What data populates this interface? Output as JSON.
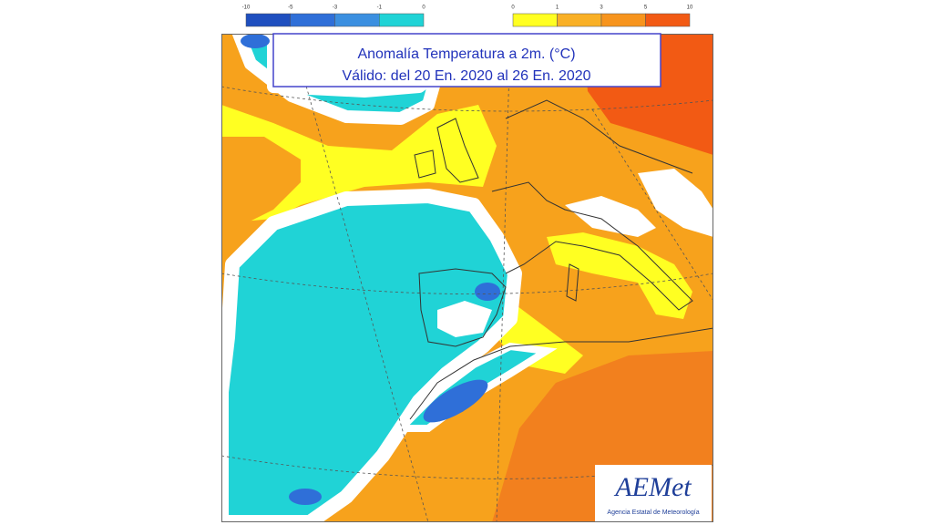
{
  "title": {
    "line1": "Anomalía Temperatura a 2m. (°C)",
    "line2": "Válido: del 20 En. 2020 al 26 En. 2020"
  },
  "legend": {
    "cold": {
      "ticks": [
        -10,
        -5,
        -3,
        -1,
        0
      ],
      "colors": [
        "#1f4fbf",
        "#2f6fd8",
        "#3b8fe0",
        "#20d3d6"
      ]
    },
    "warm": {
      "ticks": [
        0,
        1,
        3,
        5,
        10
      ],
      "colors": [
        "#ffff22",
        "#f9b026",
        "#f7941d",
        "#f25a14"
      ]
    }
  },
  "logo": {
    "name": "AEMet",
    "subtitle": "Agencia Estatal de Meteorología"
  }
}
